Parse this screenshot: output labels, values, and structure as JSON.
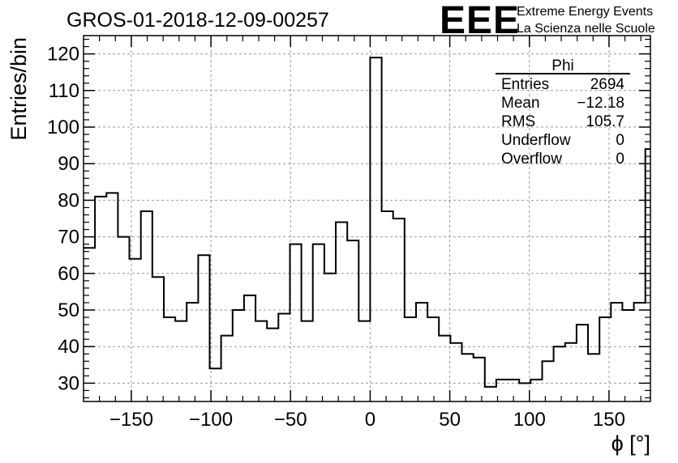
{
  "header": {
    "run_title": "GROS-01-2018-12-09-00257",
    "logo_text": "EEE",
    "logo_line1": "Extreme Energy Events",
    "logo_line2": "La Scienza nelle Scuole",
    "logo_color": "#1a1aff"
  },
  "stats_box": {
    "title": "Phi",
    "rows": [
      {
        "label": "Entries",
        "value": "2694"
      },
      {
        "label": "Mean",
        "value": "−12.18"
      },
      {
        "label": "RMS",
        "value": "105.7"
      },
      {
        "label": "Underflow",
        "value": "0"
      },
      {
        "label": "Overflow",
        "value": "0"
      }
    ]
  },
  "chart_data": {
    "type": "histogram",
    "title": "GROS-01-2018-12-09-00257",
    "xlabel": "ϕ [°]",
    "ylabel": "Entries/bin",
    "xlim": [
      -180,
      176
    ],
    "ylim": [
      25,
      125
    ],
    "grid": true,
    "x_ticks": [
      -150,
      -100,
      -50,
      0,
      50,
      100,
      150
    ],
    "x_tick_labels": [
      "−150",
      "−100",
      "−50",
      "0",
      "50",
      "100",
      "150"
    ],
    "y_ticks": [
      30,
      40,
      50,
      60,
      70,
      80,
      90,
      100,
      110,
      120
    ],
    "y_tick_labels": [
      "30",
      "40",
      "50",
      "60",
      "70",
      "80",
      "90",
      "100",
      "110",
      "120"
    ],
    "bin_edges_start": -180,
    "bin_width": 7.2,
    "values": [
      67,
      81,
      82,
      70,
      64,
      77,
      59,
      48,
      47,
      52,
      65,
      34,
      43,
      50,
      54,
      47,
      45,
      49,
      68,
      47,
      68,
      60,
      74,
      69,
      47,
      119,
      77,
      75,
      48,
      52,
      48,
      43,
      41,
      38,
      37,
      29,
      31,
      31,
      30,
      31,
      36,
      40,
      41,
      46,
      38,
      48,
      52,
      50,
      52,
      94
    ],
    "line_color": "#000000"
  }
}
